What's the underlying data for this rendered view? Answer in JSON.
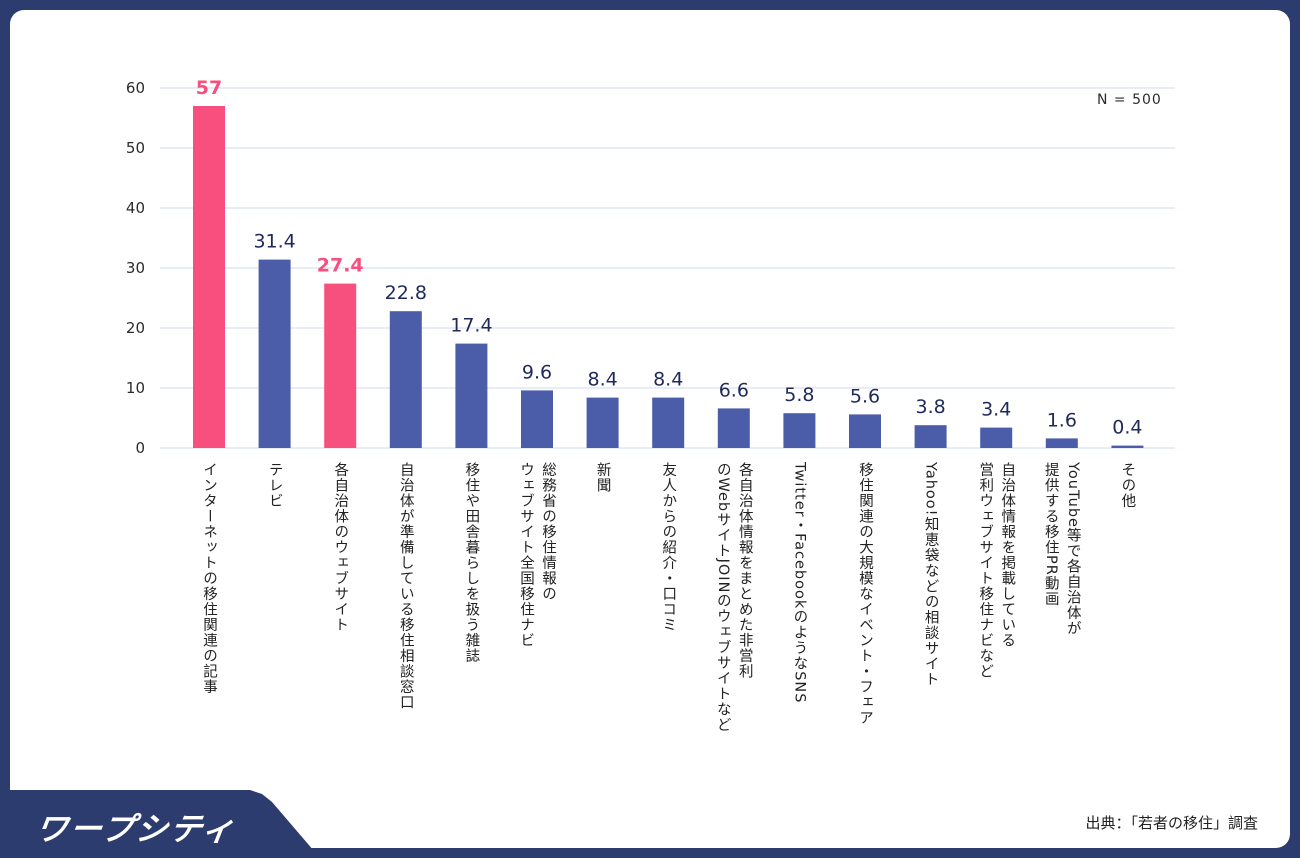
{
  "chart_data": {
    "type": "bar",
    "categories": [
      "インターネットの移住関連の記事",
      "テレビ",
      "各自治体のウェブサイト",
      "自治体が準備している移住相談窓口",
      "移住や田舎暮らしを扱う雑誌",
      "総務省の移住情報の\nウェブサイト全国移住ナビ",
      "新聞",
      "友人からの紹介・口コミ",
      "各自治体情報をまとめた非営利\nのWebサイトJOINのウェブサイトなど",
      "Twitter・FacebookのようなSNS",
      "移住関連の大規模なイベント・フェア",
      "Yahoo!知恵袋などの相談サイト",
      "自治体情報を掲載している\n営利ウェブサイト移住ナビなど",
      "YouTube等で各自治体が\n提供する移住PR動画",
      "その他"
    ],
    "values": [
      57,
      31.4,
      27.4,
      22.8,
      17.4,
      9.6,
      8.4,
      8.4,
      6.6,
      5.8,
      5.6,
      3.8,
      3.4,
      1.6,
      0.4
    ],
    "value_labels": [
      "57",
      "31.4",
      "27.4",
      "22.8",
      "17.4",
      "9.6",
      "8.4",
      "8.4",
      "6.6",
      "5.8",
      "5.6",
      "3.8",
      "3.4",
      "1.6",
      "0.4"
    ],
    "highlight": [
      true,
      false,
      true,
      false,
      false,
      false,
      false,
      false,
      false,
      false,
      false,
      false,
      false,
      false,
      false
    ],
    "yticks": [
      "0",
      "10",
      "20",
      "30",
      "40",
      "50",
      "60"
    ],
    "ylim": [
      0,
      60
    ],
    "grid": true,
    "colors": {
      "highlight": "#f7507f",
      "normal": "#4b5da9",
      "label": "#1f2a5a",
      "grid": "#dfe6f3"
    }
  },
  "annotation": "N = 500",
  "logo": {
    "text": "ワープシティ"
  },
  "source": "出典：「若者の移住」調査"
}
